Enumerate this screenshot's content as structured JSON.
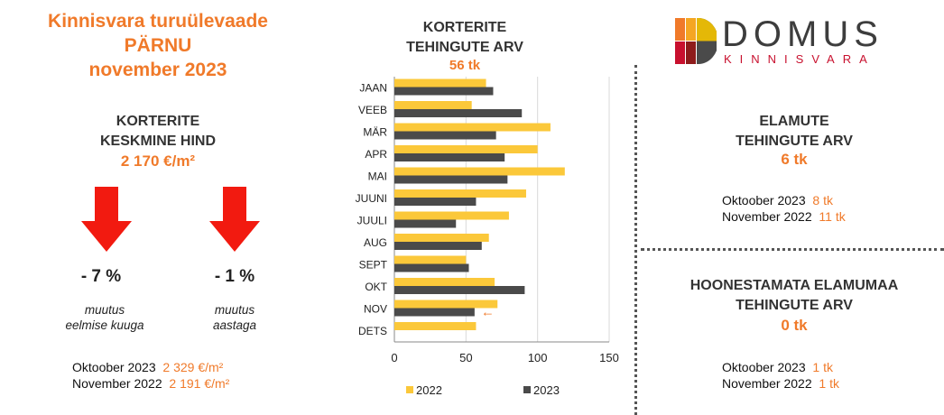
{
  "left": {
    "title_lines": [
      "Kinnisvara turuülevaade",
      "PÄRNU",
      "november 2023"
    ],
    "price_head": [
      "KORTERITE",
      "KESKMINE HIND"
    ],
    "price_value": "2 170 €/m²",
    "change_month": {
      "value": "- 7 %",
      "caption": [
        "muutus",
        "eelmise kuuga"
      ]
    },
    "change_year": {
      "value": "- 1 %",
      "caption": [
        "muutus",
        "aastaga"
      ]
    },
    "compare": [
      {
        "label": "Oktoober 2023",
        "value": "2 329 €/m²"
      },
      {
        "label": "November 2022",
        "value": "2 191 €/m²"
      }
    ]
  },
  "center": {
    "head": [
      "KORTERITE",
      "TEHINGUTE ARV"
    ],
    "value": "56 tk"
  },
  "right": {
    "logo_top": "DOMUS",
    "logo_bottom": "KINNISVARA",
    "houses": {
      "head": [
        "ELAMUTE",
        "TEHINGUTE ARV"
      ],
      "value": "6 tk",
      "compare": [
        {
          "label": "Oktoober 2023",
          "value": "8 tk"
        },
        {
          "label": "November 2022",
          "value": "11 tk"
        }
      ]
    },
    "land": {
      "head": [
        "HOONESTAMATA ELAMUMAA",
        "TEHINGUTE ARV"
      ],
      "value": "0 tk",
      "compare": [
        {
          "label": "Oktoober 2023",
          "value": "1 tk"
        },
        {
          "label": "November 2022",
          "value": "1 tk"
        }
      ]
    }
  },
  "colors": {
    "accent": "#F07A2A",
    "s2022": "#FBC83A",
    "s2023": "#4A4A4A",
    "arrow": "#F21A10"
  },
  "chart_data": {
    "type": "bar",
    "orientation": "horizontal",
    "categories": [
      "JAAN",
      "VEEB",
      "MÄR",
      "APR",
      "MAI",
      "JUUNI",
      "JUULI",
      "AUG",
      "SEPT",
      "OKT",
      "NOV",
      "DETS"
    ],
    "series": [
      {
        "name": "2022",
        "values": [
          64,
          54,
          109,
          100,
          119,
          92,
          80,
          66,
          50,
          70,
          72,
          57
        ]
      },
      {
        "name": "2023",
        "values": [
          69,
          89,
          71,
          77,
          79,
          57,
          43,
          61,
          52,
          91,
          56,
          null
        ]
      }
    ],
    "xlim": [
      0,
      150
    ],
    "xticks": [
      "0",
      "50",
      "100",
      "150"
    ],
    "grid": true,
    "legend": "bottom",
    "annotation": "←"
  }
}
